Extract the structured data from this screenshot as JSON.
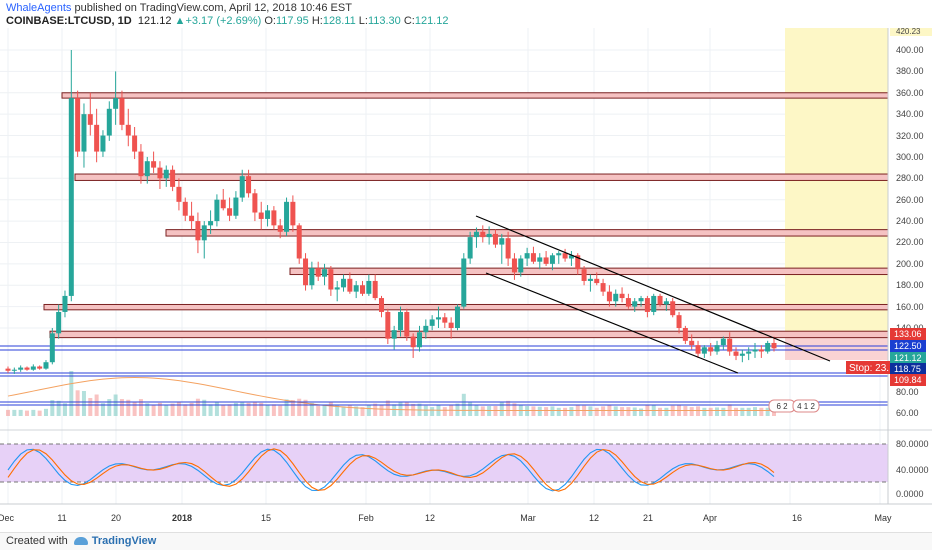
{
  "header": {
    "author": "WhaleAgents",
    "published_text": "published on TradingView.com, April 12, 2018 10:46 EST",
    "symbol": "COINBASE:LTCUSD, 1D",
    "last": "121.12",
    "arrow": "▲",
    "change": "+3.17 (+2.69%)",
    "o_label": "O:",
    "o": "117.95",
    "h_label": "H:",
    "h": "128.11",
    "l_label": "L:",
    "l": "113.30",
    "c_label": "C:",
    "c": "121.12"
  },
  "footer": {
    "created_with": "Created with",
    "brand": "TradingView"
  },
  "colors": {
    "up": "#26a69a",
    "down": "#ef5350",
    "accent": "#2962ff"
  },
  "chart_data": {
    "type": "candlestick",
    "price_axis": {
      "ticks": [
        "400.00",
        "380.00",
        "360.00",
        "340.00",
        "320.00",
        "300.00",
        "280.00",
        "260.00",
        "240.00",
        "220.00",
        "200.00",
        "180.00",
        "160.00",
        "140.00",
        "80.00",
        "60.00"
      ],
      "top_label": "420.23"
    },
    "price_labels": [
      {
        "text": "133.06",
        "value": 133.06,
        "color": "#e53935"
      },
      {
        "text": "122.50",
        "value": 122.5,
        "color": "#1a3fd1"
      },
      {
        "text": "121.12",
        "value": 121.12,
        "color": "#26a69a"
      },
      {
        "text": "118.75",
        "value": 118.75,
        "color": "#0d2f9e"
      },
      {
        "text": "109.84",
        "value": 109.84,
        "color": "#e53935"
      }
    ],
    "stop_label": "Stop: 23.",
    "stoch_axis": [
      "80.0000",
      "40.0000",
      "0.0000"
    ],
    "x_labels": [
      "Dec",
      "11",
      "20",
      "2018",
      "15",
      "Feb",
      "12",
      "Mar",
      "12",
      "21",
      "Apr",
      "16",
      "May"
    ],
    "markers": [
      "6 2",
      "4 1 2"
    ],
    "resistance_zones": [
      [
        355,
        360
      ],
      [
        278,
        284
      ],
      [
        226,
        232
      ],
      [
        190,
        196
      ],
      [
        157,
        162
      ],
      [
        131,
        137
      ]
    ],
    "candles": [
      [
        102,
        104,
        98,
        100
      ],
      [
        100,
        103,
        97,
        101
      ],
      [
        101,
        105,
        99,
        103
      ],
      [
        103,
        104,
        100,
        101
      ],
      [
        101,
        106,
        100,
        104
      ],
      [
        104,
        105,
        101,
        102
      ],
      [
        102,
        110,
        101,
        108
      ],
      [
        108,
        140,
        106,
        135
      ],
      [
        135,
        162,
        130,
        155
      ],
      [
        155,
        175,
        150,
        170
      ],
      [
        170,
        400,
        165,
        355
      ],
      [
        355,
        362,
        300,
        305
      ],
      [
        305,
        350,
        290,
        340
      ],
      [
        340,
        360,
        320,
        330
      ],
      [
        330,
        345,
        295,
        305
      ],
      [
        305,
        325,
        300,
        320
      ],
      [
        320,
        352,
        315,
        345
      ],
      [
        345,
        380,
        330,
        355
      ],
      [
        355,
        362,
        325,
        330
      ],
      [
        330,
        345,
        310,
        320
      ],
      [
        320,
        328,
        298,
        305
      ],
      [
        305,
        312,
        275,
        282
      ],
      [
        282,
        300,
        275,
        296
      ],
      [
        296,
        305,
        285,
        290
      ],
      [
        290,
        296,
        270,
        280
      ],
      [
        280,
        292,
        272,
        288
      ],
      [
        288,
        292,
        268,
        272
      ],
      [
        272,
        280,
        250,
        258
      ],
      [
        258,
        262,
        240,
        245
      ],
      [
        245,
        258,
        232,
        240
      ],
      [
        240,
        248,
        210,
        222
      ],
      [
        222,
        240,
        205,
        236
      ],
      [
        236,
        250,
        228,
        240
      ],
      [
        240,
        265,
        235,
        260
      ],
      [
        260,
        270,
        250,
        252
      ],
      [
        252,
        262,
        240,
        245
      ],
      [
        245,
        268,
        242,
        262
      ],
      [
        262,
        288,
        258,
        282
      ],
      [
        282,
        288,
        262,
        266
      ],
      [
        266,
        270,
        240,
        248
      ],
      [
        248,
        258,
        232,
        242
      ],
      [
        242,
        255,
        235,
        250
      ],
      [
        250,
        254,
        232,
        236
      ],
      [
        236,
        242,
        224,
        230
      ],
      [
        230,
        262,
        226,
        258
      ],
      [
        258,
        264,
        230,
        236
      ],
      [
        236,
        238,
        200,
        205
      ],
      [
        205,
        210,
        175,
        180
      ],
      [
        180,
        202,
        176,
        196
      ],
      [
        196,
        202,
        184,
        188
      ],
      [
        188,
        200,
        180,
        195
      ],
      [
        195,
        198,
        170,
        176
      ],
      [
        176,
        184,
        165,
        178
      ],
      [
        178,
        190,
        174,
        186
      ],
      [
        186,
        192,
        172,
        174
      ],
      [
        174,
        184,
        168,
        180
      ],
      [
        180,
        184,
        170,
        172
      ],
      [
        172,
        190,
        170,
        184
      ],
      [
        184,
        190,
        166,
        168
      ],
      [
        168,
        170,
        150,
        155
      ],
      [
        155,
        158,
        125,
        130
      ],
      [
        130,
        142,
        120,
        138
      ],
      [
        138,
        160,
        132,
        155
      ],
      [
        155,
        158,
        128,
        132
      ],
      [
        132,
        135,
        112,
        122
      ],
      [
        122,
        142,
        118,
        136
      ],
      [
        136,
        148,
        130,
        142
      ],
      [
        142,
        152,
        138,
        148
      ],
      [
        148,
        160,
        140,
        150
      ],
      [
        150,
        154,
        140,
        145
      ],
      [
        145,
        150,
        130,
        140
      ],
      [
        140,
        162,
        138,
        160
      ],
      [
        160,
        210,
        158,
        205
      ],
      [
        205,
        230,
        200,
        225
      ],
      [
        225,
        234,
        215,
        230
      ],
      [
        230,
        236,
        220,
        225
      ],
      [
        225,
        235,
        218,
        228
      ],
      [
        228,
        232,
        215,
        218
      ],
      [
        218,
        228,
        200,
        224
      ],
      [
        224,
        230,
        198,
        205
      ],
      [
        205,
        210,
        185,
        192
      ],
      [
        192,
        208,
        188,
        205
      ],
      [
        205,
        215,
        198,
        210
      ],
      [
        210,
        216,
        200,
        202
      ],
      [
        202,
        210,
        195,
        206
      ],
      [
        206,
        212,
        198,
        200
      ],
      [
        200,
        210,
        194,
        208
      ],
      [
        208,
        212,
        200,
        210
      ],
      [
        210,
        214,
        202,
        205
      ],
      [
        205,
        212,
        198,
        208
      ],
      [
        208,
        210,
        190,
        195
      ],
      [
        195,
        198,
        180,
        184
      ],
      [
        184,
        190,
        174,
        186
      ],
      [
        186,
        192,
        180,
        182
      ],
      [
        182,
        186,
        170,
        174
      ],
      [
        174,
        180,
        160,
        165
      ],
      [
        165,
        176,
        160,
        172
      ],
      [
        172,
        178,
        164,
        168
      ],
      [
        168,
        172,
        158,
        160
      ],
      [
        160,
        168,
        155,
        165
      ],
      [
        165,
        170,
        160,
        168
      ],
      [
        168,
        170,
        150,
        155
      ],
      [
        155,
        172,
        152,
        170
      ],
      [
        170,
        172,
        160,
        162
      ],
      [
        162,
        168,
        156,
        165
      ],
      [
        165,
        168,
        150,
        152
      ],
      [
        152,
        155,
        135,
        140
      ],
      [
        140,
        142,
        125,
        128
      ],
      [
        128,
        134,
        120,
        124
      ],
      [
        124,
        128,
        112,
        116
      ],
      [
        116,
        124,
        112,
        122
      ],
      [
        122,
        126,
        114,
        118
      ],
      [
        118,
        128,
        115,
        124
      ],
      [
        124,
        132,
        120,
        130
      ],
      [
        130,
        136,
        114,
        118
      ],
      [
        118,
        122,
        110,
        114
      ],
      [
        114,
        120,
        108,
        116
      ],
      [
        116,
        122,
        110,
        118
      ],
      [
        118,
        126,
        112,
        120
      ],
      [
        120,
        124,
        112,
        118
      ],
      [
        118,
        128,
        116,
        126
      ],
      [
        126,
        132,
        118,
        121
      ]
    ]
  }
}
